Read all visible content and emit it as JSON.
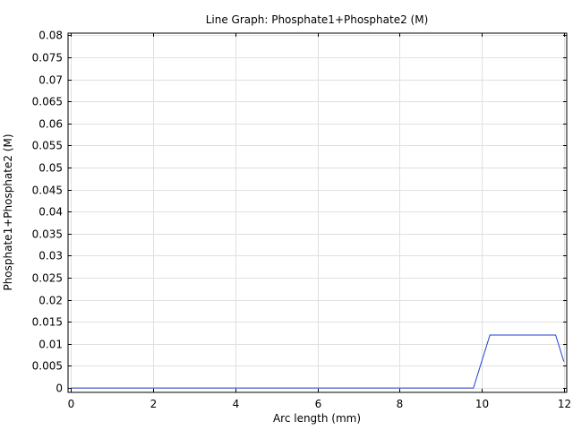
{
  "chart_data": {
    "type": "line",
    "title": "Line Graph: Phosphate1+Phosphate2 (M)",
    "xlabel": "Arc length (mm)",
    "ylabel": "Phosphate1+Phosphate2 (M)",
    "xlim": [
      -0.07,
      12.07
    ],
    "ylim": [
      -0.001,
      0.0805
    ],
    "xticks": [
      0,
      2,
      4,
      6,
      8,
      10,
      12
    ],
    "xtick_labels": [
      "0",
      "2",
      "4",
      "6",
      "8",
      "10",
      "12"
    ],
    "yticks": [
      0,
      0.005,
      0.01,
      0.015,
      0.02,
      0.025,
      0.03,
      0.035,
      0.04,
      0.045,
      0.05,
      0.055,
      0.06,
      0.065,
      0.07,
      0.075,
      0.08
    ],
    "ytick_labels": [
      "0",
      "0.005",
      "0.01",
      "0.015",
      "0.02",
      "0.025",
      "0.03",
      "0.035",
      "0.04",
      "0.045",
      "0.05",
      "0.055",
      "0.06",
      "0.065",
      "0.07",
      "0.075",
      "0.08"
    ],
    "grid": true,
    "series": [
      {
        "color": "#1f3fd6",
        "x": [
          0,
          9.8,
          10.2,
          11.8,
          12.0
        ],
        "y": [
          0,
          0,
          0.012,
          0.012,
          0.006
        ]
      }
    ]
  },
  "colors": {
    "grid": "#e0e0e0",
    "axis": "#000000",
    "line": "#1f3fd6"
  }
}
